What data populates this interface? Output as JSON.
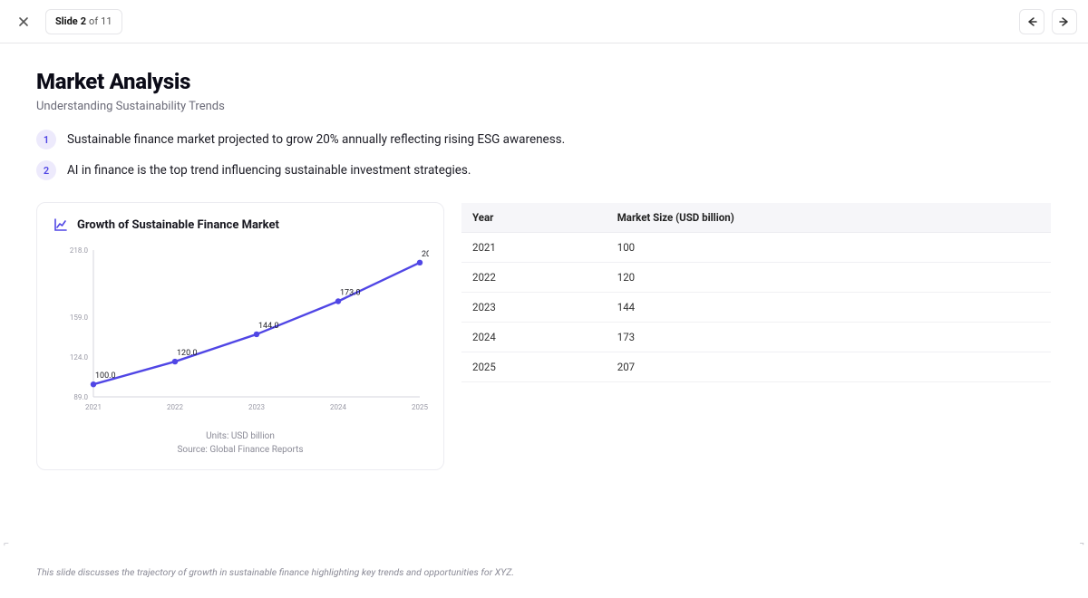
{
  "slide_meta": {
    "label_prefix": "Slide",
    "current": "2",
    "of_word": "of",
    "total": "11"
  },
  "header": {
    "title": "Market Analysis",
    "subtitle": "Understanding Sustainability Trends"
  },
  "points": [
    {
      "num": "1",
      "text": "Sustainable finance market projected to grow 20% annually reflecting rising ESG awareness."
    },
    {
      "num": "2",
      "text": "AI in finance is the top trend influencing sustainable investment strategies."
    }
  ],
  "badge_colors": {
    "bg": "#edeafc",
    "fg": "#5046e5"
  },
  "chart": {
    "type": "line",
    "title": "Growth of Sustainable Finance Market",
    "icon_color": "#5046e5",
    "units_label": "Units: USD billion",
    "source_label": "Source: Global Finance Reports",
    "x_labels": [
      "2021",
      "2022",
      "2023",
      "2024",
      "2025"
    ],
    "values": [
      100,
      120,
      144,
      173,
      207
    ],
    "point_labels": [
      "100.0",
      "120.0",
      "144.0",
      "173.0",
      "207.0"
    ],
    "y_ticks": [
      89.0,
      124.0,
      159.0,
      218.0
    ],
    "y_tick_labels": [
      "89.0",
      "124.0",
      "159.0",
      "218.0"
    ],
    "ylim": [
      89,
      218
    ],
    "line_color": "#5046e5",
    "line_width": 2.4,
    "marker_radius": 3.2,
    "marker_fill": "#5046e5",
    "axis_color": "#d4d4dc",
    "tick_text_color": "#9a9aa6",
    "value_text_color": "#222228",
    "background": "#ffffff",
    "tick_fontsize": 8,
    "value_fontsize": 9
  },
  "table": {
    "columns": [
      "Year",
      "Market Size (USD billion)"
    ],
    "rows": [
      [
        "2021",
        "100"
      ],
      [
        "2022",
        "120"
      ],
      [
        "2023",
        "144"
      ],
      [
        "2024",
        "173"
      ],
      [
        "2025",
        "207"
      ]
    ]
  },
  "speaker_note": "This slide discusses the trajectory of growth in sustainable finance highlighting key trends and opportunities for XYZ."
}
